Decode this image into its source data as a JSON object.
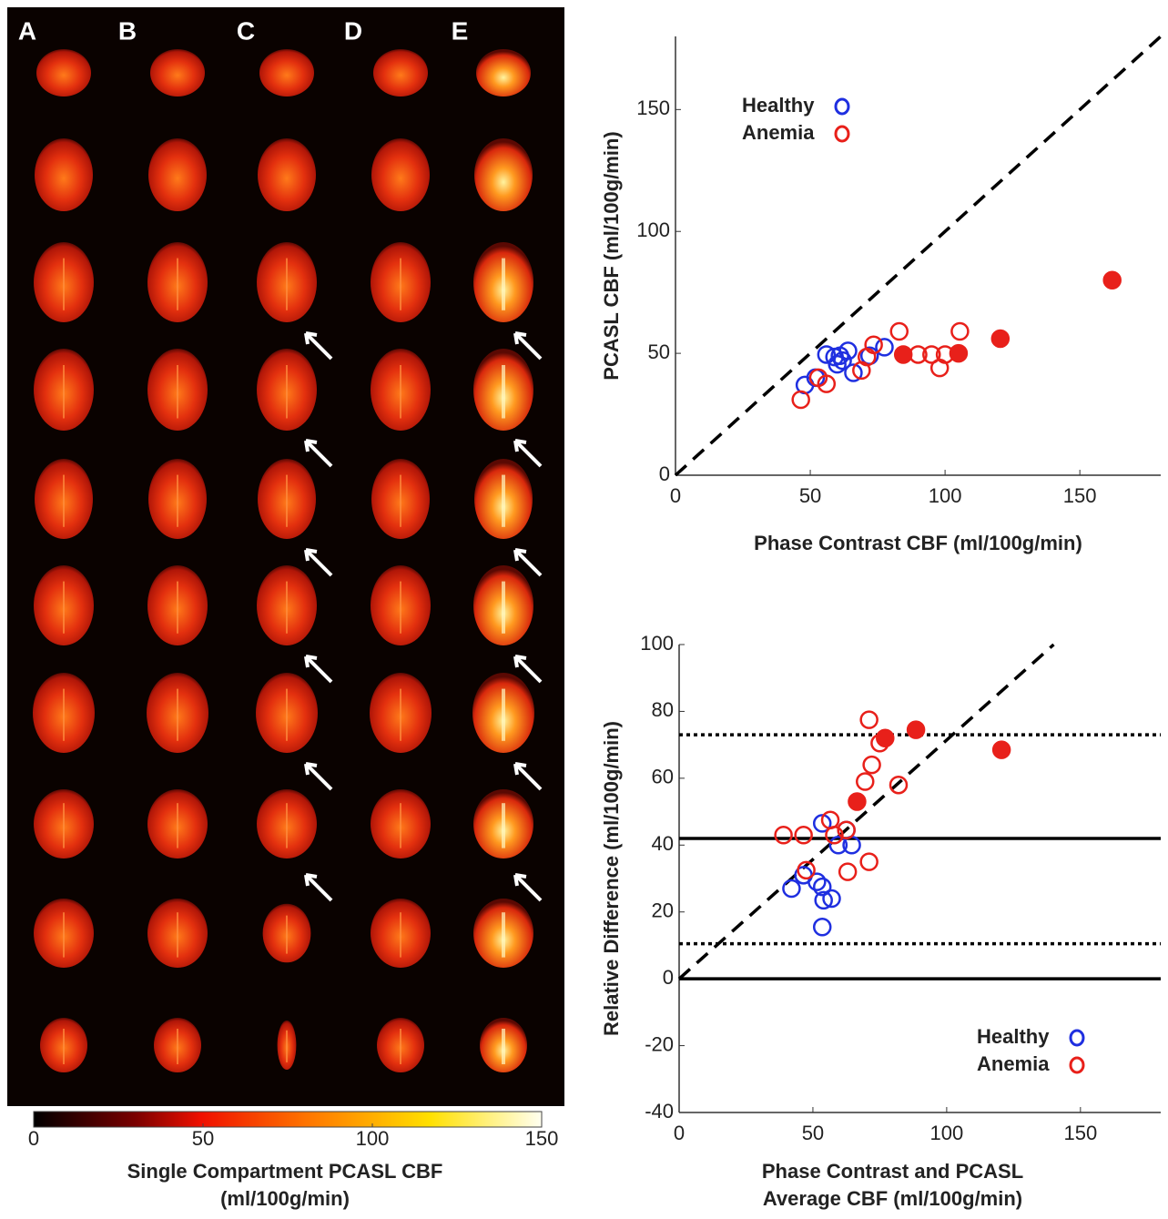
{
  "image_panel": {
    "column_labels": [
      "A",
      "B",
      "C",
      "D",
      "E"
    ]
  },
  "chart_data": [
    {
      "type": "colorbar",
      "xlim": [
        0,
        150
      ],
      "xticks": [
        0,
        50,
        100,
        150
      ],
      "xlabel": [
        "Single Compartment PCASL CBF",
        "(ml/100g/min)"
      ]
    },
    {
      "type": "scatter",
      "xlabel": "Phase Contrast CBF (ml/100g/min)",
      "ylabel": "PCASL CBF (ml/100g/min)",
      "xlim": [
        0,
        180
      ],
      "ylim": [
        0,
        180
      ],
      "xticks": [
        0,
        50,
        100,
        150
      ],
      "yticks": [
        0,
        50,
        100,
        150
      ],
      "legend": "upper-left",
      "reference_line": {
        "x": [
          0,
          180
        ],
        "values": [
          0,
          180
        ],
        "style": "dashed"
      },
      "series": [
        {
          "name": "Healthy",
          "color": "#1f2fe0",
          "marker": "open",
          "x": [
            48,
            52,
            56,
            59,
            60,
            61,
            62,
            64,
            66,
            72,
            77.5
          ],
          "values": [
            37,
            40,
            49.5,
            48.5,
            45.5,
            49,
            47,
            51,
            42,
            49,
            52.5
          ]
        },
        {
          "name": "Anemia",
          "color": "#e8201a",
          "marker": "open",
          "x": [
            46.5,
            53,
            56,
            69,
            71,
            73.5,
            83,
            90,
            95,
            98,
            100,
            105.5
          ],
          "values": [
            31,
            40,
            37.5,
            43,
            48.5,
            53.5,
            59,
            49.5,
            49.5,
            44,
            49.5,
            59
          ]
        },
        {
          "color": "#e8201a",
          "marker": "filled",
          "x": [
            84.5,
            105,
            120.5,
            162
          ],
          "values": [
            49.5,
            50,
            56,
            80
          ]
        }
      ]
    },
    {
      "type": "scatter",
      "xlabel": [
        "Phase Contrast and PCASL",
        "Average CBF (ml/100g/min)"
      ],
      "ylabel": "Relative Difference (ml/100g/min)",
      "xlim": [
        0,
        180
      ],
      "ylim": [
        -40,
        100
      ],
      "xticks": [
        0,
        50,
        100,
        150
      ],
      "yticks": [
        -40,
        -20,
        0,
        20,
        40,
        60,
        80,
        100
      ],
      "legend": "lower-right",
      "reference_line": {
        "x": [
          0,
          140
        ],
        "values": [
          0,
          100
        ],
        "style": "dashed"
      },
      "hlines": [
        {
          "value": 73,
          "style": "dotted"
        },
        {
          "value": 42,
          "style": "solid"
        },
        {
          "value": 10.5,
          "style": "dotted"
        },
        {
          "value": 0,
          "style": "solid"
        }
      ],
      "series": [
        {
          "name": "Healthy",
          "color": "#1f2fe0",
          "marker": "open",
          "x": [
            42,
            46.5,
            51.5,
            53.5,
            53.5,
            54,
            53.5,
            57,
            59.5,
            64.5,
            62.5
          ],
          "values": [
            27,
            31,
            29,
            46.5,
            15.5,
            23.5,
            27.5,
            24,
            40,
            40,
            44.5
          ]
        },
        {
          "name": "Anemia",
          "color": "#e8201a",
          "marker": "open",
          "x": [
            39,
            46.5,
            47.5,
            56.5,
            58,
            62.5,
            63,
            69.5,
            71,
            72,
            71,
            75,
            82
          ],
          "values": [
            43,
            43,
            32.5,
            47.5,
            43,
            44.5,
            32,
            59,
            35,
            64,
            77.5,
            70.5,
            58
          ]
        },
        {
          "color": "#e8201a",
          "marker": "filled",
          "x": [
            66.5,
            77,
            88.5,
            120.5
          ],
          "values": [
            53,
            72,
            74.5,
            68.5
          ]
        }
      ]
    }
  ]
}
